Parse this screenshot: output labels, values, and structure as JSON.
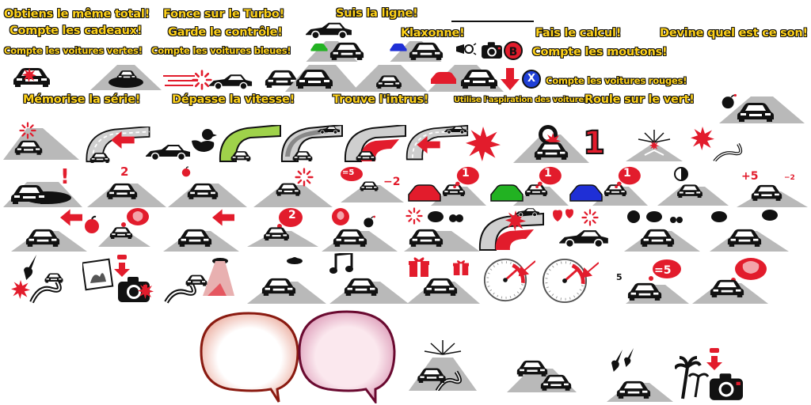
{
  "labels": {
    "same_total": "Obtiens le même total!",
    "count_gifts": "Compte les cadeaux!",
    "count_green_cars": "Compte les voitures vertes!",
    "turbo": "Fonce sur le Turbo!",
    "keep_control": "Garde le contrôle!",
    "count_blue_cars": "Compte les voitures bleues!",
    "follow_line": "Suis la ligne!",
    "honk": "Klaxonne!",
    "do_math": "Fais le calcul!",
    "guess_sound": "Devine quel est ce son!",
    "count_sheep": "Compte les moutons!",
    "count_red_cars": "Compte les voitures rouges!",
    "memorize_series": "Mémorise la série!",
    "exceed_speed": "Dépasse la vitesse!",
    "find_intruder": "Trouve l'intrus!",
    "use_slipstream": "Utilise l'aspiration des voitures!",
    "drive_green": "Roule sur le vert!"
  },
  "markers": {
    "number_one": "1",
    "count_two": "2",
    "minus_five": "=5",
    "minus_two": "−2",
    "plus_five": "+5",
    "minus_two_small": "−2",
    "speech_one": "1",
    "speech_two": "2",
    "five": "5",
    "equals_five": "=5"
  },
  "buttons": {
    "x_button": "X",
    "b_button": "B"
  },
  "colors": {
    "label_fill": "#ffd21a",
    "label_outline": "#111111",
    "accent_red": "#e21c2c",
    "green_car": "#22b222",
    "blue_car": "#1f2fd6",
    "road": "#b9b9b9"
  }
}
